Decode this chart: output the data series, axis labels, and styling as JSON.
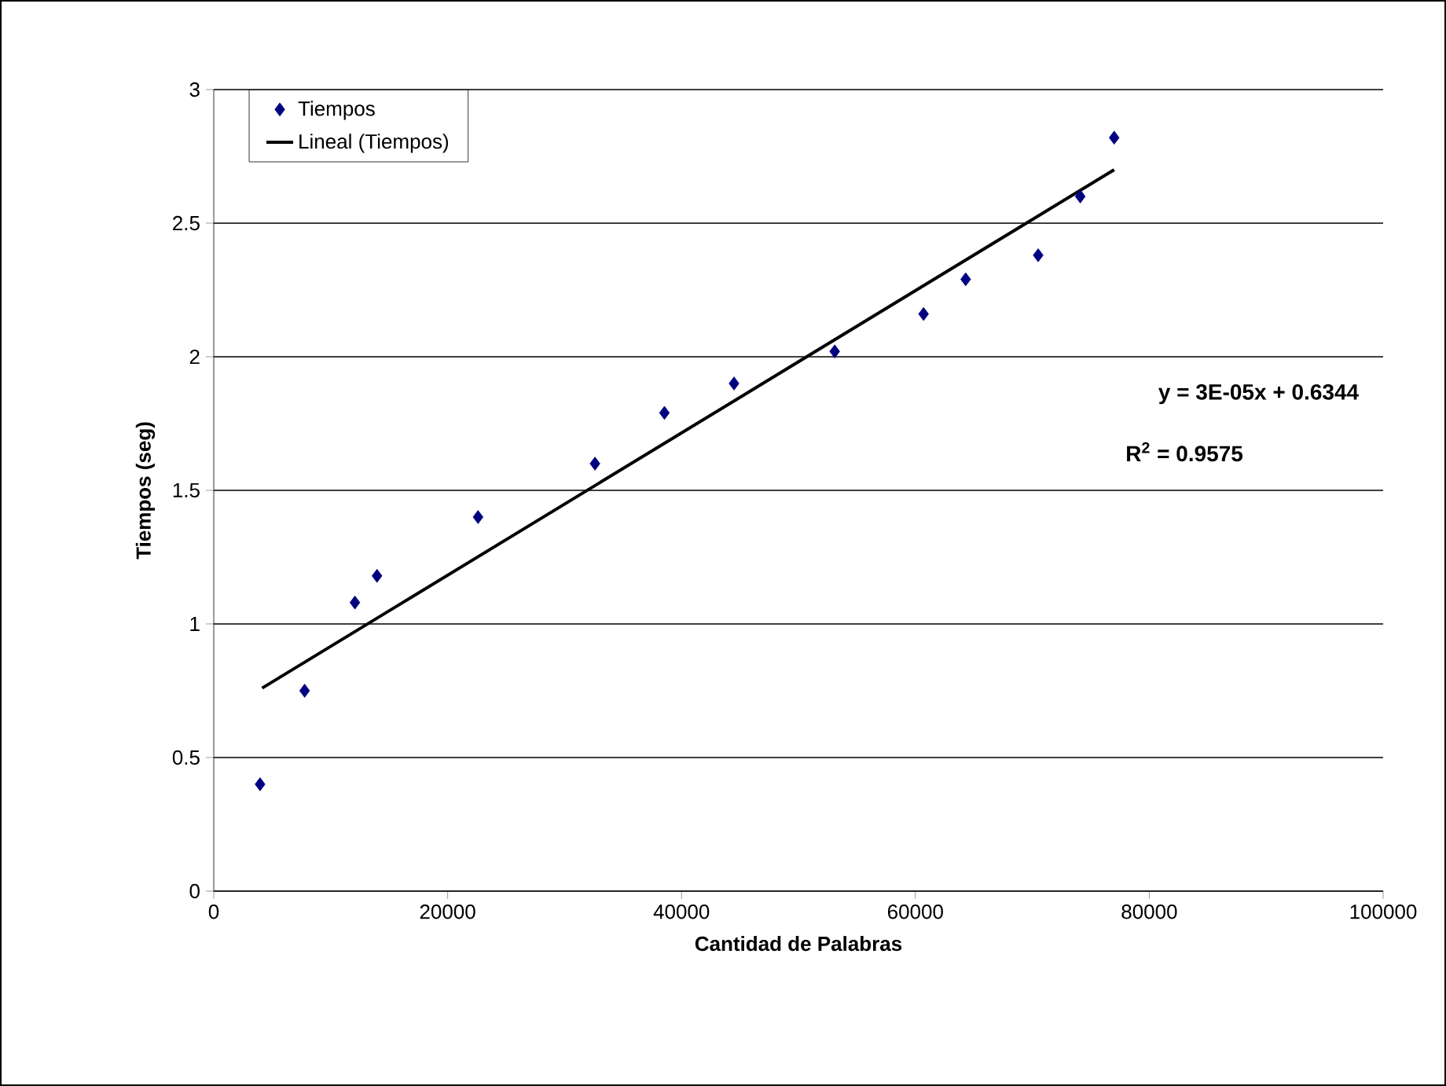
{
  "chart_data": {
    "type": "scatter",
    "xlabel": "Cantidad de Palabras",
    "ylabel": "Tiempos (seg)",
    "xlim": [
      0,
      100000
    ],
    "ylim": [
      0,
      3
    ],
    "xticks": [
      0,
      20000,
      40000,
      60000,
      80000,
      100000
    ],
    "yticks": [
      0,
      0.5,
      1,
      1.5,
      2,
      2.5,
      3
    ],
    "grid": "y",
    "legend": "top left",
    "series": [
      {
        "name": "Tiempos",
        "marker": "diamond",
        "color": "#000080",
        "x": [
          3960,
          7770,
          12070,
          13960,
          22600,
          32600,
          38540,
          44490,
          53100,
          60700,
          64300,
          70500,
          74100,
          77000
        ],
        "values": [
          0.4,
          0.75,
          1.08,
          1.18,
          1.4,
          1.6,
          1.79,
          1.9,
          2.02,
          2.16,
          2.29,
          2.38,
          2.6,
          2.82
        ]
      },
      {
        "name": "Lineal (Tiempos)",
        "type": "line",
        "marker": "none",
        "line_style": "solid",
        "color": "#000000",
        "x": [
          4140,
          77000
        ],
        "values": [
          0.76,
          2.7
        ]
      }
    ],
    "annotations": [
      "y = 3E-05x + 0.6344",
      "R$^{2}$ = 0.9575"
    ]
  }
}
